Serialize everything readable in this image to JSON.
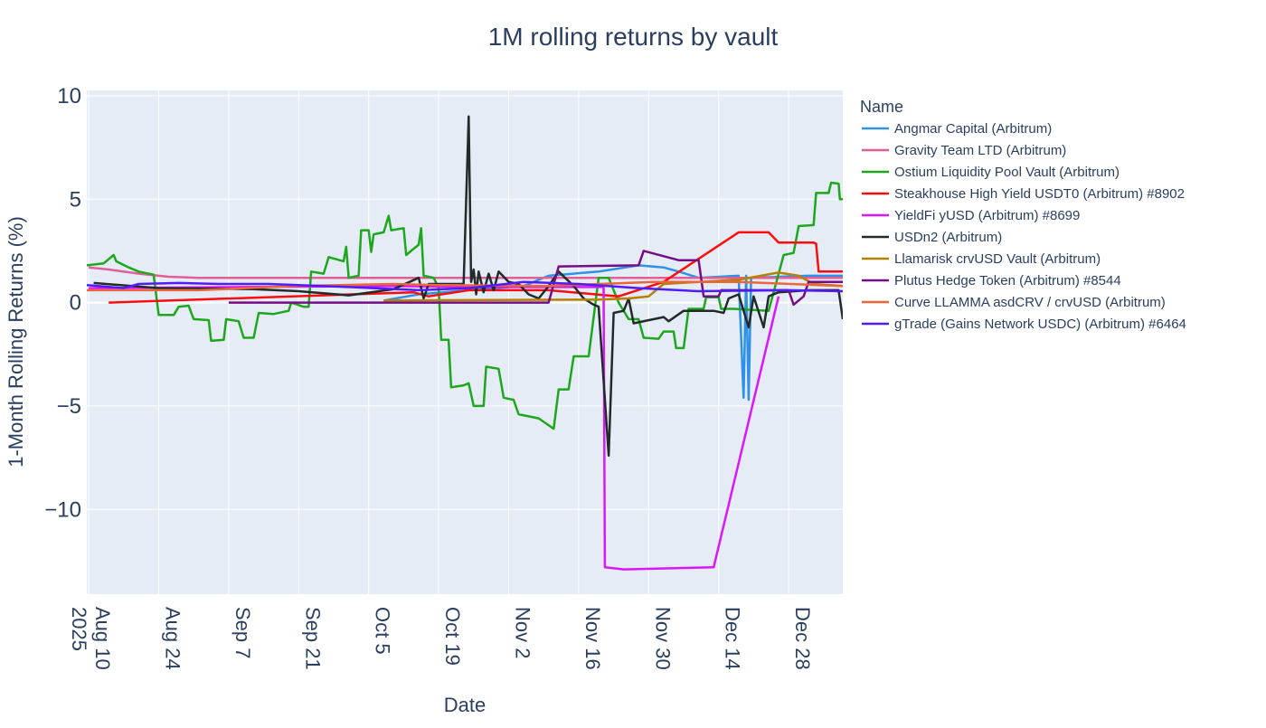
{
  "chart_data": {
    "type": "line",
    "title": "1M rolling returns by vault",
    "xlabel": "Date",
    "ylabel": "1-Month Rolling Returns (%)",
    "xlim": [
      "2025-08-09T15:00",
      "2026-01-07T20:00"
    ],
    "ylim": [
      -14.1,
      10.26
    ],
    "grid": true,
    "legend_title": "Name",
    "legend_placement": "right",
    "x_ticks": [
      {
        "date": "2025-08-10",
        "label": "Aug 10",
        "sub": "2025"
      },
      {
        "date": "2025-08-24",
        "label": "Aug 24"
      },
      {
        "date": "2025-09-07",
        "label": "Sep 7"
      },
      {
        "date": "2025-09-21",
        "label": "Sep 21"
      },
      {
        "date": "2025-10-05",
        "label": "Oct 5"
      },
      {
        "date": "2025-10-19",
        "label": "Oct 19"
      },
      {
        "date": "2025-11-02",
        "label": "Nov 2"
      },
      {
        "date": "2025-11-16",
        "label": "Nov 16"
      },
      {
        "date": "2025-11-30",
        "label": "Nov 30"
      },
      {
        "date": "2025-12-14",
        "label": "Dec 14"
      },
      {
        "date": "2025-12-28",
        "label": "Dec 28"
      }
    ],
    "y_ticks": [
      {
        "value": 10,
        "label": "10"
      },
      {
        "value": 5,
        "label": "5"
      },
      {
        "value": 0,
        "label": "0"
      },
      {
        "value": -5,
        "label": "−5"
      },
      {
        "value": -10,
        "label": "−10"
      }
    ],
    "series": [
      {
        "name": "Angmar Capital (Arbitrum)",
        "color": "#2E91E5",
        "points": [
          [
            "2025-10-08",
            0.1
          ],
          [
            "2025-10-15",
            0.4
          ],
          [
            "2025-10-25",
            0.6
          ],
          [
            "2025-11-05",
            0.8
          ],
          [
            "2025-11-10",
            1.3
          ],
          [
            "2025-11-20",
            1.5
          ],
          [
            "2025-11-28",
            1.8
          ],
          [
            "2025-12-03",
            1.7
          ],
          [
            "2025-12-06",
            1.5
          ],
          [
            "2025-12-10",
            1.2
          ],
          [
            "2025-12-18",
            1.3
          ],
          [
            "2025-12-19",
            -4.6
          ],
          [
            "2025-12-19T12:00",
            1.3
          ],
          [
            "2025-12-20",
            -4.7
          ],
          [
            "2025-12-20T12:00",
            1.2
          ],
          [
            "2026-01-01",
            1.3
          ],
          [
            "2026-01-07T20:00",
            1.3
          ]
        ]
      },
      {
        "name": "Gravity Team LTD (Arbitrum)",
        "color": "#E15F99",
        "points": [
          [
            "2025-08-10",
            1.7
          ],
          [
            "2025-08-14",
            1.6
          ],
          [
            "2025-08-20",
            1.4
          ],
          [
            "2025-08-26",
            1.25
          ],
          [
            "2025-09-01",
            1.2
          ],
          [
            "2025-09-20",
            1.2
          ],
          [
            "2025-10-19",
            1.2
          ],
          [
            "2025-11-20",
            1.2
          ],
          [
            "2025-12-20",
            1.2
          ],
          [
            "2026-01-07T20:00",
            1.2
          ]
        ]
      },
      {
        "name": "Ostium Liquidity Pool Vault (Arbitrum)",
        "color": "#1CA71C",
        "points": [
          [
            "2025-08-09T15:00",
            1.8
          ],
          [
            "2025-08-13",
            1.9
          ],
          [
            "2025-08-14",
            2.1
          ],
          [
            "2025-08-15",
            2.3
          ],
          [
            "2025-08-15T12:00",
            2.0
          ],
          [
            "2025-08-18",
            1.7
          ],
          [
            "2025-08-20",
            1.5
          ],
          [
            "2025-08-23",
            1.35
          ],
          [
            "2025-08-24",
            -0.6
          ],
          [
            "2025-08-27",
            -0.6
          ],
          [
            "2025-08-28",
            -0.2
          ],
          [
            "2025-08-30",
            -0.15
          ],
          [
            "2025-08-31",
            -0.8
          ],
          [
            "2025-09-03",
            -0.85
          ],
          [
            "2025-09-03T12:00",
            -1.85
          ],
          [
            "2025-09-06",
            -1.8
          ],
          [
            "2025-09-06T12:00",
            -0.8
          ],
          [
            "2025-09-09",
            -0.9
          ],
          [
            "2025-09-10",
            -1.7
          ],
          [
            "2025-09-12",
            -1.7
          ],
          [
            "2025-09-13",
            -0.5
          ],
          [
            "2025-09-16",
            -0.55
          ],
          [
            "2025-09-19",
            -0.4
          ],
          [
            "2025-09-19T12:00",
            0.0
          ],
          [
            "2025-09-22",
            -0.2
          ],
          [
            "2025-09-23",
            -0.2
          ],
          [
            "2025-09-23T12:00",
            1.5
          ],
          [
            "2025-09-26",
            1.4
          ],
          [
            "2025-09-27",
            2.2
          ],
          [
            "2025-09-30",
            2.0
          ],
          [
            "2025-09-30T12:00",
            2.7
          ],
          [
            "2025-10-01",
            1.2
          ],
          [
            "2025-10-03",
            1.3
          ],
          [
            "2025-10-03T12:00",
            3.5
          ],
          [
            "2025-10-05",
            3.5
          ],
          [
            "2025-10-05T12:00",
            2.45
          ],
          [
            "2025-10-06",
            3.3
          ],
          [
            "2025-10-08",
            3.4
          ],
          [
            "2025-10-09",
            4.2
          ],
          [
            "2025-10-09T12:00",
            3.5
          ],
          [
            "2025-10-12",
            3.6
          ],
          [
            "2025-10-12T12:00",
            2.3
          ],
          [
            "2025-10-14",
            2.6
          ],
          [
            "2025-10-15",
            2.8
          ],
          [
            "2025-10-15T12:00",
            3.6
          ],
          [
            "2025-10-16",
            1.3
          ],
          [
            "2025-10-18",
            1.2
          ],
          [
            "2025-10-19",
            0.7
          ],
          [
            "2025-10-19T12:00",
            -1.8
          ],
          [
            "2025-10-21",
            -1.8
          ],
          [
            "2025-10-21T12:00",
            -4.1
          ],
          [
            "2025-10-24",
            -4.0
          ],
          [
            "2025-10-25",
            -3.9
          ],
          [
            "2025-10-26",
            -5.0
          ],
          [
            "2025-10-28",
            -5.0
          ],
          [
            "2025-10-28T12:00",
            -3.1
          ],
          [
            "2025-10-31",
            -3.2
          ],
          [
            "2025-11-01",
            -4.6
          ],
          [
            "2025-11-03",
            -4.7
          ],
          [
            "2025-11-04",
            -5.4
          ],
          [
            "2025-11-08",
            -5.6
          ],
          [
            "2025-11-11",
            -6.1
          ],
          [
            "2025-11-12",
            -4.2
          ],
          [
            "2025-11-14",
            -4.2
          ],
          [
            "2025-11-15",
            -2.6
          ],
          [
            "2025-11-18",
            -2.6
          ],
          [
            "2025-11-20",
            1.2
          ],
          [
            "2025-11-22",
            1.2
          ],
          [
            "2025-11-24",
            0.0
          ],
          [
            "2025-11-26",
            -0.8
          ],
          [
            "2025-11-28",
            -0.8
          ],
          [
            "2025-11-29",
            -1.7
          ],
          [
            "2025-12-02",
            -1.75
          ],
          [
            "2025-12-03",
            -1.4
          ],
          [
            "2025-12-05",
            -1.4
          ],
          [
            "2025-12-05T12:00",
            -2.2
          ],
          [
            "2025-12-07",
            -2.2
          ],
          [
            "2025-12-08",
            -0.3
          ],
          [
            "2025-12-11",
            -0.3
          ],
          [
            "2025-12-11T12:00",
            0.26
          ],
          [
            "2025-12-14",
            0.26
          ],
          [
            "2025-12-14T12:00",
            -0.3
          ],
          [
            "2025-12-17",
            -0.3
          ],
          [
            "2025-12-24",
            -0.4
          ],
          [
            "2025-12-27",
            2.3
          ],
          [
            "2025-12-29",
            2.4
          ],
          [
            "2025-12-30",
            3.7
          ],
          [
            "2026-01-02",
            3.75
          ],
          [
            "2026-01-02T12:00",
            5.3
          ],
          [
            "2026-01-05",
            5.3
          ],
          [
            "2026-01-05T12:00",
            5.8
          ],
          [
            "2026-01-07",
            5.75
          ],
          [
            "2026-01-07T06:00",
            5.0
          ],
          [
            "2026-01-07T20:00",
            5.0
          ]
        ]
      },
      {
        "name": "Steakhouse High Yield USDT0 (Arbitrum) #8902",
        "color": "#FB0D0D",
        "points": [
          [
            "2025-08-14",
            0.0
          ],
          [
            "2025-10-14",
            0.5
          ],
          [
            "2025-10-17",
            0.3
          ],
          [
            "2025-10-25",
            0.6
          ],
          [
            "2025-11-10",
            0.6
          ],
          [
            "2025-11-24",
            0.3
          ],
          [
            "2025-12-03",
            1.0
          ],
          [
            "2025-12-18",
            3.4
          ],
          [
            "2025-12-24",
            3.4
          ],
          [
            "2025-12-26",
            2.9
          ],
          [
            "2026-01-02",
            2.9
          ],
          [
            "2026-01-02T12:00",
            2.85
          ],
          [
            "2026-01-03",
            1.5
          ],
          [
            "2026-01-07T20:00",
            1.5
          ]
        ]
      },
      {
        "name": "YieldFi yUSD (Arbitrum) #8699",
        "color": "#DA16FF",
        "points": [
          [
            "2025-08-10",
            0.7
          ],
          [
            "2025-09-10",
            0.75
          ],
          [
            "2025-10-10",
            0.8
          ],
          [
            "2025-10-25",
            0.75
          ],
          [
            "2025-11-10",
            0.75
          ],
          [
            "2025-11-21",
            0.75
          ],
          [
            "2025-11-21T06:00",
            -12.8
          ],
          [
            "2025-11-25",
            -12.9
          ],
          [
            "2025-12-13",
            -12.8
          ],
          [
            "2025-12-26",
            0.3
          ]
        ]
      },
      {
        "name": "USDn2 (Arbitrum)",
        "color": "#222A2A",
        "points": [
          [
            "2025-08-11",
            0.95
          ],
          [
            "2025-08-24",
            0.7
          ],
          [
            "2025-09-12",
            0.65
          ],
          [
            "2025-09-21",
            0.55
          ],
          [
            "2025-10-01",
            0.35
          ],
          [
            "2025-10-10",
            0.65
          ],
          [
            "2025-10-15",
            1.2
          ],
          [
            "2025-10-16",
            0.2
          ],
          [
            "2025-10-17",
            0.9
          ],
          [
            "2025-10-24",
            0.9
          ],
          [
            "2025-10-25",
            9.0
          ],
          [
            "2025-10-25T12:00",
            1.0
          ],
          [
            "2025-10-26",
            1.6
          ],
          [
            "2025-10-26T12:00",
            0.4
          ],
          [
            "2025-10-27",
            1.5
          ],
          [
            "2025-10-28",
            0.5
          ],
          [
            "2025-10-29",
            1.4
          ],
          [
            "2025-10-30",
            0.6
          ],
          [
            "2025-10-31",
            1.5
          ],
          [
            "2025-11-02",
            1.0
          ],
          [
            "2025-11-04",
            0.9
          ],
          [
            "2025-11-06",
            0.4
          ],
          [
            "2025-11-08",
            0.2
          ],
          [
            "2025-11-10",
            0.8
          ],
          [
            "2025-11-12",
            1.5
          ],
          [
            "2025-11-15",
            0.8
          ],
          [
            "2025-11-17",
            0.2
          ],
          [
            "2025-11-19",
            -0.1
          ],
          [
            "2025-11-20",
            -0.2
          ],
          [
            "2025-11-22",
            -7.4
          ],
          [
            "2025-11-23",
            -0.5
          ],
          [
            "2025-11-25",
            -0.4
          ],
          [
            "2025-11-26",
            0.2
          ],
          [
            "2025-11-27",
            -1.0
          ],
          [
            "2025-12-03",
            -0.7
          ],
          [
            "2025-12-04",
            -0.9
          ],
          [
            "2025-12-07",
            -0.4
          ],
          [
            "2025-12-13",
            -0.4
          ],
          [
            "2025-12-15",
            -0.5
          ],
          [
            "2025-12-16",
            0.2
          ],
          [
            "2025-12-18",
            0.4
          ],
          [
            "2025-12-20",
            -1.2
          ],
          [
            "2025-12-21",
            0.3
          ],
          [
            "2025-12-23",
            -1.2
          ],
          [
            "2025-12-24",
            0.3
          ],
          [
            "2025-12-26",
            0.5
          ],
          [
            "2026-01-01",
            0.6
          ],
          [
            "2026-01-07",
            0.6
          ],
          [
            "2026-01-07T20:00",
            -0.8
          ]
        ]
      },
      {
        "name": "Llamarisk crvUSD Vault (Arbitrum)",
        "color": "#B68100",
        "points": [
          [
            "2025-10-08",
            0.1
          ],
          [
            "2025-11-20",
            0.15
          ],
          [
            "2025-11-26",
            0.2
          ],
          [
            "2025-11-30",
            0.3
          ],
          [
            "2025-12-03",
            0.9
          ],
          [
            "2025-12-10",
            1.0
          ],
          [
            "2025-12-18",
            1.1
          ],
          [
            "2025-12-26",
            1.45
          ],
          [
            "2025-12-30",
            1.3
          ],
          [
            "2026-01-02",
            0.9
          ],
          [
            "2026-01-07T20:00",
            0.8
          ]
        ]
      },
      {
        "name": "Plutus Hedge Token (Arbitrum) #8544",
        "color": "#750D86",
        "points": [
          [
            "2025-09-07",
            0.0
          ],
          [
            "2025-11-10",
            0.0
          ],
          [
            "2025-11-12",
            1.75
          ],
          [
            "2025-11-28",
            1.8
          ],
          [
            "2025-11-29",
            2.5
          ],
          [
            "2025-12-06",
            2.05
          ],
          [
            "2025-12-10",
            2.05
          ],
          [
            "2025-12-11",
            0.3
          ],
          [
            "2025-12-14",
            0.3
          ],
          [
            "2025-12-14T12:00",
            0.6
          ],
          [
            "2025-12-28",
            0.6
          ],
          [
            "2025-12-29",
            -0.1
          ],
          [
            "2025-12-31",
            0.3
          ],
          [
            "2026-01-01",
            1.0
          ],
          [
            "2026-01-07T20:00",
            1.0
          ]
        ]
      },
      {
        "name": "Curve LLAMMA asdCRV / crvUSD (Arbitrum)",
        "color": "#EB663B",
        "points": [
          [
            "2025-08-09T15:00",
            0.6
          ],
          [
            "2025-09-01",
            0.6
          ],
          [
            "2025-09-20",
            0.8
          ],
          [
            "2025-10-10",
            0.9
          ],
          [
            "2025-10-19",
            0.85
          ],
          [
            "2025-11-10",
            0.8
          ],
          [
            "2025-12-01",
            1.0
          ],
          [
            "2025-12-18",
            1.0
          ],
          [
            "2026-01-07T20:00",
            0.8
          ]
        ]
      },
      {
        "name": "gTrade (Gains Network USDC) (Arbitrum) #6464",
        "color": "#511CFB",
        "points": [
          [
            "2025-08-09T15:00",
            0.85
          ],
          [
            "2025-08-17",
            0.7
          ],
          [
            "2025-08-20",
            0.9
          ],
          [
            "2025-08-28",
            0.95
          ],
          [
            "2025-09-05",
            0.9
          ],
          [
            "2025-09-15",
            0.9
          ],
          [
            "2025-10-01",
            0.75
          ],
          [
            "2025-10-15",
            0.6
          ],
          [
            "2025-10-25",
            0.7
          ],
          [
            "2025-11-05",
            1.0
          ],
          [
            "2025-11-16",
            0.9
          ],
          [
            "2025-11-28",
            0.7
          ],
          [
            "2025-12-10",
            0.55
          ],
          [
            "2025-12-28",
            0.6
          ],
          [
            "2026-01-07T20:00",
            0.55
          ]
        ]
      }
    ]
  }
}
